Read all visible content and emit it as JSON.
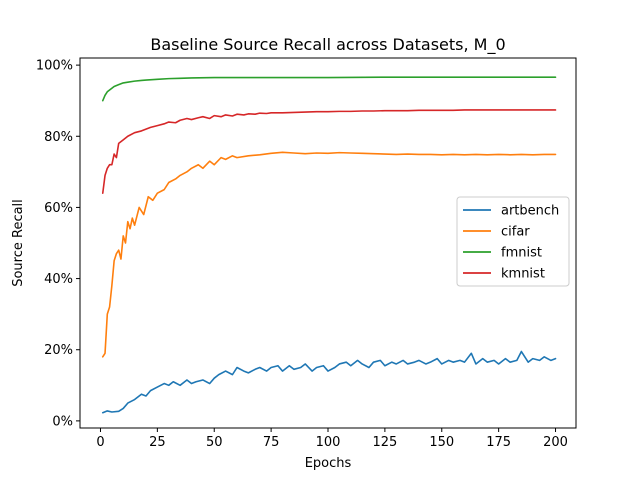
{
  "chart_data": {
    "type": "line",
    "title": "Baseline Source Recall across Datasets, M_0",
    "xlabel": "Epochs",
    "ylabel": "Source Recall",
    "xlim": [
      -9,
      209
    ],
    "ylim": [
      -0.02,
      1.02
    ],
    "xticks": [
      0,
      25,
      50,
      75,
      100,
      125,
      150,
      175,
      200
    ],
    "yticks": [
      0,
      0.2,
      0.4,
      0.6,
      0.8,
      1.0
    ],
    "ytick_labels": [
      "0%",
      "20%",
      "40%",
      "60%",
      "80%",
      "100%"
    ],
    "grid": false,
    "legend_position": "center-right",
    "series": [
      {
        "name": "artbench",
        "color": "#1f77b4",
        "x": [
          1,
          3,
          5,
          8,
          10,
          12,
          15,
          18,
          20,
          22,
          25,
          28,
          30,
          32,
          35,
          38,
          40,
          42,
          45,
          48,
          50,
          52,
          55,
          58,
          60,
          63,
          65,
          68,
          70,
          73,
          75,
          78,
          80,
          83,
          85,
          88,
          90,
          93,
          95,
          98,
          100,
          103,
          105,
          108,
          110,
          113,
          115,
          118,
          120,
          123,
          125,
          128,
          130,
          133,
          135,
          138,
          140,
          143,
          145,
          148,
          150,
          153,
          155,
          158,
          160,
          163,
          165,
          168,
          170,
          173,
          175,
          178,
          180,
          183,
          185,
          188,
          190,
          193,
          195,
          198,
          200
        ],
        "values": [
          0.023,
          0.028,
          0.025,
          0.027,
          0.035,
          0.05,
          0.06,
          0.075,
          0.07,
          0.085,
          0.095,
          0.105,
          0.1,
          0.11,
          0.1,
          0.115,
          0.105,
          0.11,
          0.115,
          0.105,
          0.12,
          0.13,
          0.14,
          0.13,
          0.15,
          0.14,
          0.135,
          0.145,
          0.15,
          0.14,
          0.15,
          0.155,
          0.14,
          0.155,
          0.145,
          0.15,
          0.16,
          0.14,
          0.15,
          0.155,
          0.14,
          0.15,
          0.16,
          0.165,
          0.155,
          0.17,
          0.16,
          0.15,
          0.165,
          0.17,
          0.155,
          0.165,
          0.16,
          0.17,
          0.16,
          0.165,
          0.17,
          0.16,
          0.165,
          0.175,
          0.16,
          0.17,
          0.165,
          0.17,
          0.165,
          0.19,
          0.16,
          0.175,
          0.165,
          0.17,
          0.16,
          0.175,
          0.165,
          0.17,
          0.195,
          0.165,
          0.175,
          0.17,
          0.18,
          0.17,
          0.175
        ]
      },
      {
        "name": "cifar",
        "color": "#ff7f0e",
        "x": [
          1,
          2,
          3,
          4,
          5,
          6,
          7,
          8,
          9,
          10,
          11,
          12,
          13,
          14,
          15,
          17,
          19,
          21,
          23,
          25,
          28,
          30,
          33,
          35,
          38,
          40,
          43,
          45,
          48,
          50,
          53,
          55,
          58,
          60,
          65,
          70,
          75,
          80,
          85,
          90,
          95,
          100,
          105,
          110,
          115,
          120,
          125,
          130,
          135,
          140,
          145,
          150,
          155,
          160,
          165,
          170,
          175,
          180,
          185,
          190,
          195,
          200
        ],
        "values": [
          0.18,
          0.19,
          0.3,
          0.32,
          0.38,
          0.45,
          0.47,
          0.48,
          0.455,
          0.52,
          0.5,
          0.56,
          0.54,
          0.57,
          0.55,
          0.6,
          0.58,
          0.63,
          0.62,
          0.64,
          0.65,
          0.67,
          0.68,
          0.69,
          0.7,
          0.71,
          0.72,
          0.71,
          0.73,
          0.72,
          0.74,
          0.735,
          0.745,
          0.74,
          0.745,
          0.748,
          0.752,
          0.755,
          0.753,
          0.751,
          0.753,
          0.752,
          0.754,
          0.753,
          0.752,
          0.751,
          0.75,
          0.749,
          0.75,
          0.749,
          0.749,
          0.748,
          0.749,
          0.748,
          0.749,
          0.748,
          0.749,
          0.748,
          0.749,
          0.748,
          0.749,
          0.749
        ]
      },
      {
        "name": "fmnist",
        "color": "#2ca02c",
        "x": [
          1,
          2,
          3,
          4,
          5,
          6,
          8,
          10,
          12,
          15,
          18,
          20,
          25,
          30,
          35,
          40,
          50,
          60,
          75,
          100,
          125,
          150,
          175,
          200
        ],
        "values": [
          0.9,
          0.915,
          0.925,
          0.93,
          0.935,
          0.94,
          0.945,
          0.95,
          0.952,
          0.955,
          0.957,
          0.958,
          0.96,
          0.962,
          0.963,
          0.964,
          0.965,
          0.965,
          0.965,
          0.965,
          0.966,
          0.966,
          0.966,
          0.966
        ]
      },
      {
        "name": "kmnist",
        "color": "#d62728",
        "x": [
          1,
          2,
          3,
          4,
          5,
          6,
          7,
          8,
          10,
          12,
          15,
          18,
          20,
          22,
          25,
          28,
          30,
          33,
          35,
          38,
          40,
          43,
          45,
          48,
          50,
          53,
          55,
          58,
          60,
          63,
          65,
          68,
          70,
          73,
          75,
          80,
          85,
          90,
          95,
          100,
          105,
          110,
          115,
          120,
          125,
          130,
          135,
          140,
          145,
          150,
          155,
          160,
          165,
          170,
          175,
          180,
          185,
          190,
          195,
          200
        ],
        "values": [
          0.64,
          0.69,
          0.71,
          0.72,
          0.72,
          0.75,
          0.74,
          0.78,
          0.79,
          0.8,
          0.81,
          0.815,
          0.82,
          0.825,
          0.83,
          0.835,
          0.84,
          0.838,
          0.845,
          0.85,
          0.847,
          0.852,
          0.855,
          0.85,
          0.858,
          0.855,
          0.86,
          0.857,
          0.862,
          0.86,
          0.863,
          0.862,
          0.865,
          0.864,
          0.866,
          0.866,
          0.867,
          0.868,
          0.869,
          0.869,
          0.87,
          0.87,
          0.871,
          0.871,
          0.872,
          0.872,
          0.872,
          0.873,
          0.873,
          0.873,
          0.873,
          0.874,
          0.874,
          0.874,
          0.874,
          0.874,
          0.874,
          0.874,
          0.874,
          0.874
        ]
      }
    ]
  }
}
